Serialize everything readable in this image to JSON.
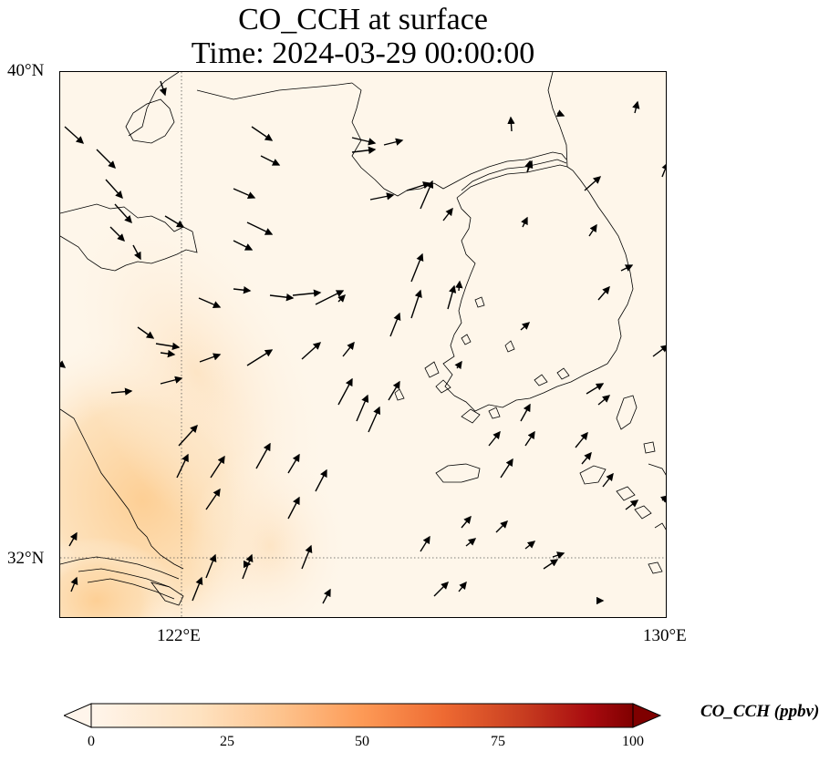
{
  "title": {
    "line1": "CO_CCH at surface",
    "line2": "Time: 2024-03-29 00:00:00"
  },
  "map": {
    "lat_labels": [
      "40°N",
      "32°N"
    ],
    "lon_labels": [
      "122°E",
      "130°E"
    ],
    "extent": {
      "lon": [
        120,
        130
      ],
      "lat": [
        31,
        40
      ]
    },
    "gridlines": {
      "lon": [
        122
      ],
      "lat": [
        32
      ],
      "style": "dotted"
    }
  },
  "colorbar": {
    "label": "CO_CCH (ppbv)",
    "ticks": [
      "0",
      "25",
      "50",
      "75",
      "100"
    ],
    "min": 0,
    "max": 100,
    "colormap": [
      "#fff5eb",
      "#fdd0a2",
      "#fd8d3c",
      "#d94801",
      "#a50f15",
      "#7f0000"
    ],
    "extend": "both"
  },
  "colors": {
    "background": "#ffffff",
    "field_low": "#fef6ea",
    "field_high": "#fdd29b",
    "coastline": "#000000"
  }
}
